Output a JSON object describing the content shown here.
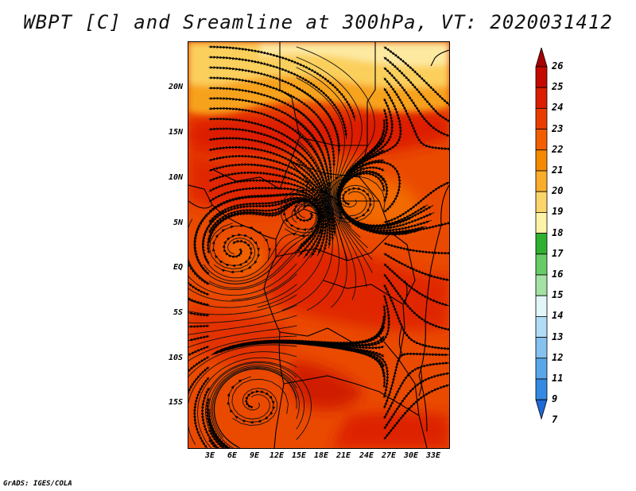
{
  "title": "WBPT [C] and Sreamline at 300hPa, VT: 2020031412",
  "credit": "GrADS: IGES/COLA",
  "lat_labels": [
    "20N",
    "15N",
    "10N",
    "5N",
    "EQ",
    "5S",
    "10S",
    "15S"
  ],
  "lon_labels": [
    "3E",
    "6E",
    "9E",
    "12E",
    "15E",
    "18E",
    "21E",
    "24E",
    "27E",
    "30E",
    "33E"
  ],
  "colorbar": {
    "labels": [
      "26",
      "25",
      "24",
      "23",
      "22",
      "21",
      "20",
      "19",
      "18",
      "17",
      "16",
      "15",
      "14",
      "13",
      "12",
      "11",
      "9",
      "7"
    ],
    "colors": [
      "#a50000",
      "#c40a00",
      "#dc1e00",
      "#eb3c00",
      "#f35e00",
      "#f58a00",
      "#f8ae2a",
      "#fbd46a",
      "#fdf3a8",
      "#2fb02f",
      "#66cc66",
      "#a4e2a4",
      "#e2f6fa",
      "#b0ddf6",
      "#86c2f0",
      "#5aa6ea",
      "#3589e2",
      "#1e68d8"
    ]
  },
  "field": {
    "variable": "WBPT [C]",
    "level": "300hPa",
    "valid_time": "2020031412",
    "lat_range": [
      -20,
      25
    ],
    "lon_range": [
      0,
      35
    ],
    "cool_band_north": "19-22",
    "bulk_range": "23-24",
    "warm_patches": "24-25",
    "vortices": [
      {
        "lon": 6.5,
        "lat": 2.0
      },
      {
        "lon": 9.0,
        "lat": -15.0
      },
      {
        "lon": 16.0,
        "lat": 6.0
      },
      {
        "lon": 22.0,
        "lat": 7.5
      }
    ]
  }
}
